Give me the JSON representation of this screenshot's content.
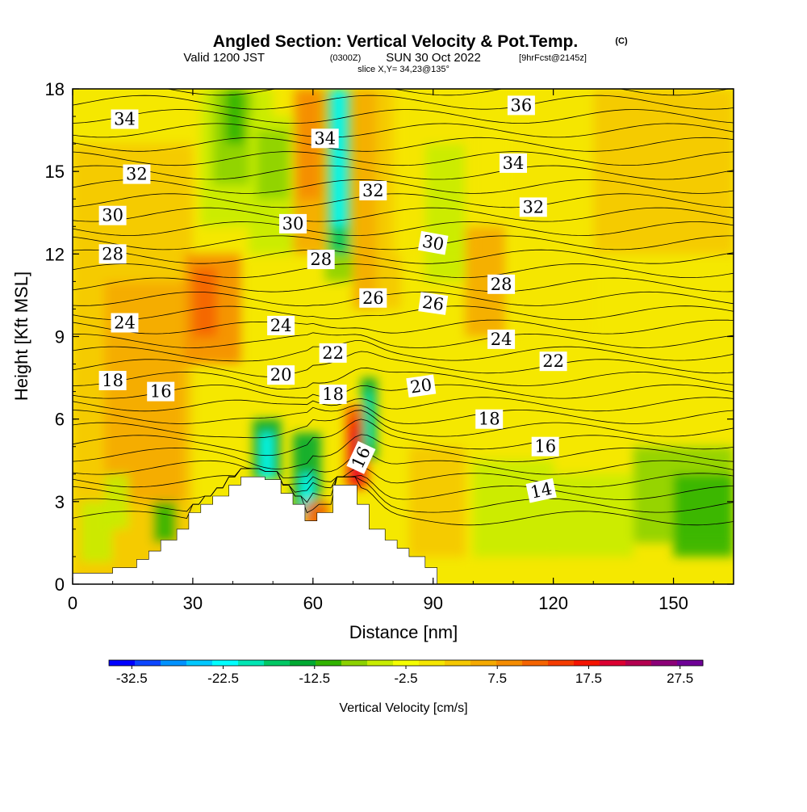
{
  "title": {
    "main": "Angled Section: Vertical Velocity & Pot.Temp.",
    "main_unit": "(C)",
    "line2_a": "Valid 1200 JST",
    "line2_b": "(0300Z)",
    "line2_c": "SUN 30 Oct 2022",
    "line2_d": "[9hrFcst@2145z]",
    "line3": "slice X,Y= 34,23@135°"
  },
  "colors": {
    "background_field": "#f5e800",
    "terrain": "#ffffff",
    "contour": "#000000",
    "colorbar": [
      "#0000ff",
      "#0c46ff",
      "#0092ff",
      "#00c8ff",
      "#00ffff",
      "#00e6b4",
      "#00c864",
      "#00aa32",
      "#32b400",
      "#8cd200",
      "#c8ec00",
      "#f5ff00",
      "#f5e600",
      "#f5c800",
      "#f5aa00",
      "#f58c00",
      "#f56400",
      "#f53c00",
      "#f51400",
      "#dc0032",
      "#b40050",
      "#8c0078",
      "#6e0096"
    ]
  },
  "chart_data": {
    "type": "heatmap",
    "xlabel": "Distance [nm]",
    "ylabel": "Height [Kft MSL]",
    "xlim": [
      0,
      165
    ],
    "ylim": [
      0,
      18
    ],
    "xticks": [
      "0",
      "30",
      "60",
      "90",
      "120",
      "150"
    ],
    "yticks": [
      "0",
      "3",
      "6",
      "9",
      "12",
      "15",
      "18"
    ],
    "colorbar": {
      "label": "Vertical Velocity [cm/s]",
      "ticks": [
        "-32.5",
        "-22.5",
        "-12.5",
        "-2.5",
        "7.5",
        "17.5",
        "27.5"
      ],
      "min": -35,
      "max": 30,
      "step": 2.5
    },
    "terrain_kft": [
      [
        0,
        0.4
      ],
      [
        10,
        0.4
      ],
      [
        10,
        0.6
      ],
      [
        16,
        0.6
      ],
      [
        16,
        0.9
      ],
      [
        19,
        0.9
      ],
      [
        19,
        1.2
      ],
      [
        22,
        1.2
      ],
      [
        22,
        1.6
      ],
      [
        26,
        1.6
      ],
      [
        26,
        2.0
      ],
      [
        29,
        2.0
      ],
      [
        29,
        2.6
      ],
      [
        32,
        2.6
      ],
      [
        32,
        2.9
      ],
      [
        35,
        2.9
      ],
      [
        35,
        3.2
      ],
      [
        39,
        3.2
      ],
      [
        39,
        3.6
      ],
      [
        42,
        3.6
      ],
      [
        42,
        3.9
      ],
      [
        48,
        3.9
      ],
      [
        48,
        3.8
      ],
      [
        52,
        3.8
      ],
      [
        52,
        3.3
      ],
      [
        55,
        3.3
      ],
      [
        55,
        2.9
      ],
      [
        58,
        2.9
      ],
      [
        58,
        2.3
      ],
      [
        61,
        2.3
      ],
      [
        61,
        2.6
      ],
      [
        65,
        2.6
      ],
      [
        65,
        3.6
      ],
      [
        71,
        3.6
      ],
      [
        71,
        2.9
      ],
      [
        74,
        2.9
      ],
      [
        74,
        2.0
      ],
      [
        78,
        2.0
      ],
      [
        78,
        1.6
      ],
      [
        81,
        1.6
      ],
      [
        81,
        1.3
      ],
      [
        84,
        1.3
      ],
      [
        84,
        1.0
      ],
      [
        88,
        1.0
      ],
      [
        88,
        0.6
      ],
      [
        91,
        0.6
      ],
      [
        91,
        0
      ],
      [
        0,
        0
      ]
    ],
    "contour_labels": [
      {
        "value": "34",
        "x": 13,
        "y": 16.9,
        "rot": 0
      },
      {
        "value": "32",
        "x": 16,
        "y": 14.9,
        "rot": 0
      },
      {
        "value": "30",
        "x": 10,
        "y": 13.4,
        "rot": 0
      },
      {
        "value": "28",
        "x": 10,
        "y": 12.0,
        "rot": 0
      },
      {
        "value": "24",
        "x": 13,
        "y": 9.5,
        "rot": 0
      },
      {
        "value": "18",
        "x": 10,
        "y": 7.4,
        "rot": 0
      },
      {
        "value": "16",
        "x": 22,
        "y": 7.0,
        "rot": 0
      },
      {
        "value": "34",
        "x": 63,
        "y": 16.2,
        "rot": 0
      },
      {
        "value": "32",
        "x": 75,
        "y": 14.3,
        "rot": 0
      },
      {
        "value": "30",
        "x": 55,
        "y": 13.1,
        "rot": 0
      },
      {
        "value": "28",
        "x": 62,
        "y": 11.8,
        "rot": 0
      },
      {
        "value": "26",
        "x": 75,
        "y": 10.4,
        "rot": 0
      },
      {
        "value": "24",
        "x": 52,
        "y": 9.4,
        "rot": 0
      },
      {
        "value": "22",
        "x": 65,
        "y": 8.4,
        "rot": 0
      },
      {
        "value": "20",
        "x": 52,
        "y": 7.6,
        "rot": 0
      },
      {
        "value": "18",
        "x": 65,
        "y": 6.9,
        "rot": 0
      },
      {
        "value": "16",
        "x": 72,
        "y": 4.6,
        "rot": -65
      },
      {
        "value": "36",
        "x": 112,
        "y": 17.4,
        "rot": 0
      },
      {
        "value": "34",
        "x": 110,
        "y": 15.3,
        "rot": 0
      },
      {
        "value": "32",
        "x": 115,
        "y": 13.7,
        "rot": 0
      },
      {
        "value": "30",
        "x": 90,
        "y": 12.4,
        "rot": 10
      },
      {
        "value": "28",
        "x": 107,
        "y": 10.9,
        "rot": 0
      },
      {
        "value": "26",
        "x": 90,
        "y": 10.2,
        "rot": 8
      },
      {
        "value": "24",
        "x": 107,
        "y": 8.9,
        "rot": 0
      },
      {
        "value": "22",
        "x": 120,
        "y": 8.1,
        "rot": 0
      },
      {
        "value": "20",
        "x": 87,
        "y": 7.2,
        "rot": -8
      },
      {
        "value": "18",
        "x": 104,
        "y": 6.0,
        "rot": 0
      },
      {
        "value": "16",
        "x": 118,
        "y": 5.0,
        "rot": 0
      },
      {
        "value": "14",
        "x": 117,
        "y": 3.4,
        "rot": -12
      }
    ]
  }
}
